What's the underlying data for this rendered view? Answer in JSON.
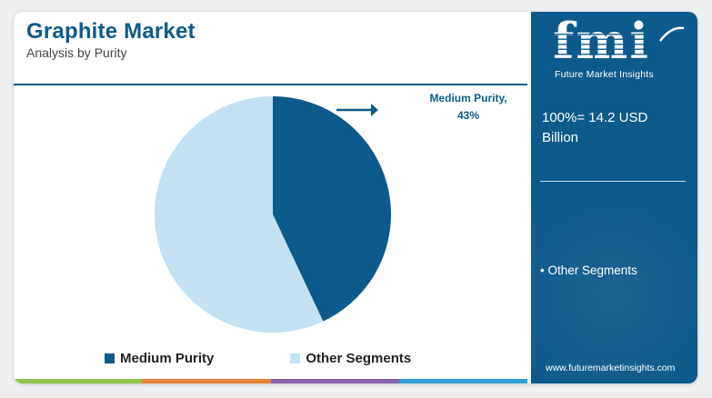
{
  "header": {
    "title": "Graphite Market",
    "subtitle": "Analysis by Purity"
  },
  "colors": {
    "primary": "#0d5a8c",
    "light": "#c3e1f3",
    "bar": [
      "#8fc44a",
      "#e8833a",
      "#8a63a6",
      "#2b9fd9"
    ]
  },
  "chart_data": {
    "type": "pie",
    "categories": [
      "Medium Purity",
      "Other Segments"
    ],
    "values": [
      43,
      57
    ],
    "colors": [
      "#0d5a8c",
      "#c3e1f3"
    ],
    "callout": {
      "line1": "Medium Purity,",
      "line2": "43%"
    },
    "legend": [
      {
        "label": "Medium Purity",
        "color": "#0d5a8c"
      },
      {
        "label": "Other Segments",
        "color": "#c3e1f3"
      }
    ],
    "legend_position": "bottom"
  },
  "sidebar": {
    "logo": "fmi",
    "logo_tagline": "Future Market Insights",
    "total_line1": "100%= 14.2 USD",
    "total_line2": "Billion",
    "bullet": "• Other Segments",
    "website": "www.futuremarketinsights.com"
  }
}
